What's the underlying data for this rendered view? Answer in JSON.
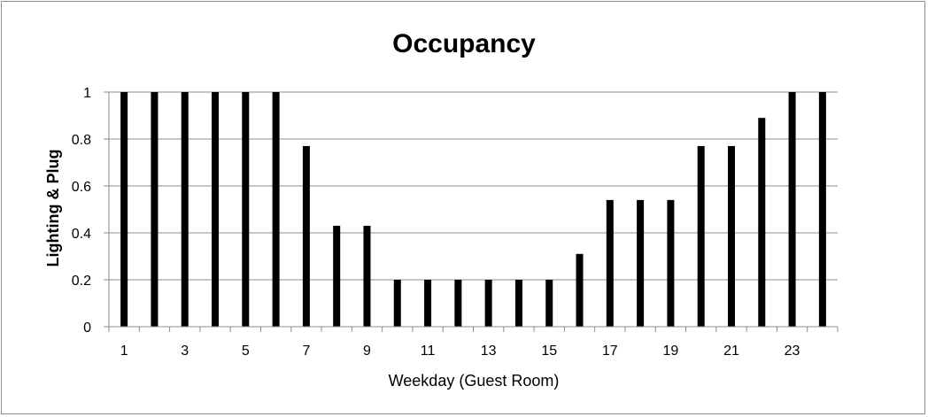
{
  "chart_data": {
    "type": "bar",
    "title": "Occupancy",
    "xlabel": "Weekday (Guest Room)",
    "ylabel": "Lighting & Plug",
    "categories": [
      "1",
      "2",
      "3",
      "4",
      "5",
      "6",
      "7",
      "8",
      "9",
      "10",
      "11",
      "12",
      "13",
      "14",
      "15",
      "16",
      "17",
      "18",
      "19",
      "20",
      "21",
      "22",
      "23",
      "24"
    ],
    "values": [
      1,
      1,
      1,
      1,
      1,
      1,
      0.77,
      0.43,
      0.43,
      0.2,
      0.2,
      0.2,
      0.2,
      0.2,
      0.2,
      0.31,
      0.54,
      0.54,
      0.54,
      0.77,
      0.77,
      0.89,
      1,
      1
    ],
    "x_tick_labels": [
      "1",
      "3",
      "5",
      "7",
      "9",
      "11",
      "13",
      "15",
      "17",
      "19",
      "21",
      "23"
    ],
    "y_tick_labels": [
      "0",
      "0.2",
      "0.4",
      "0.6",
      "0.8",
      "1"
    ],
    "ylim": [
      0,
      1
    ],
    "grid": true,
    "bar_color": "#000000",
    "grid_color": "#8c8c8c"
  }
}
